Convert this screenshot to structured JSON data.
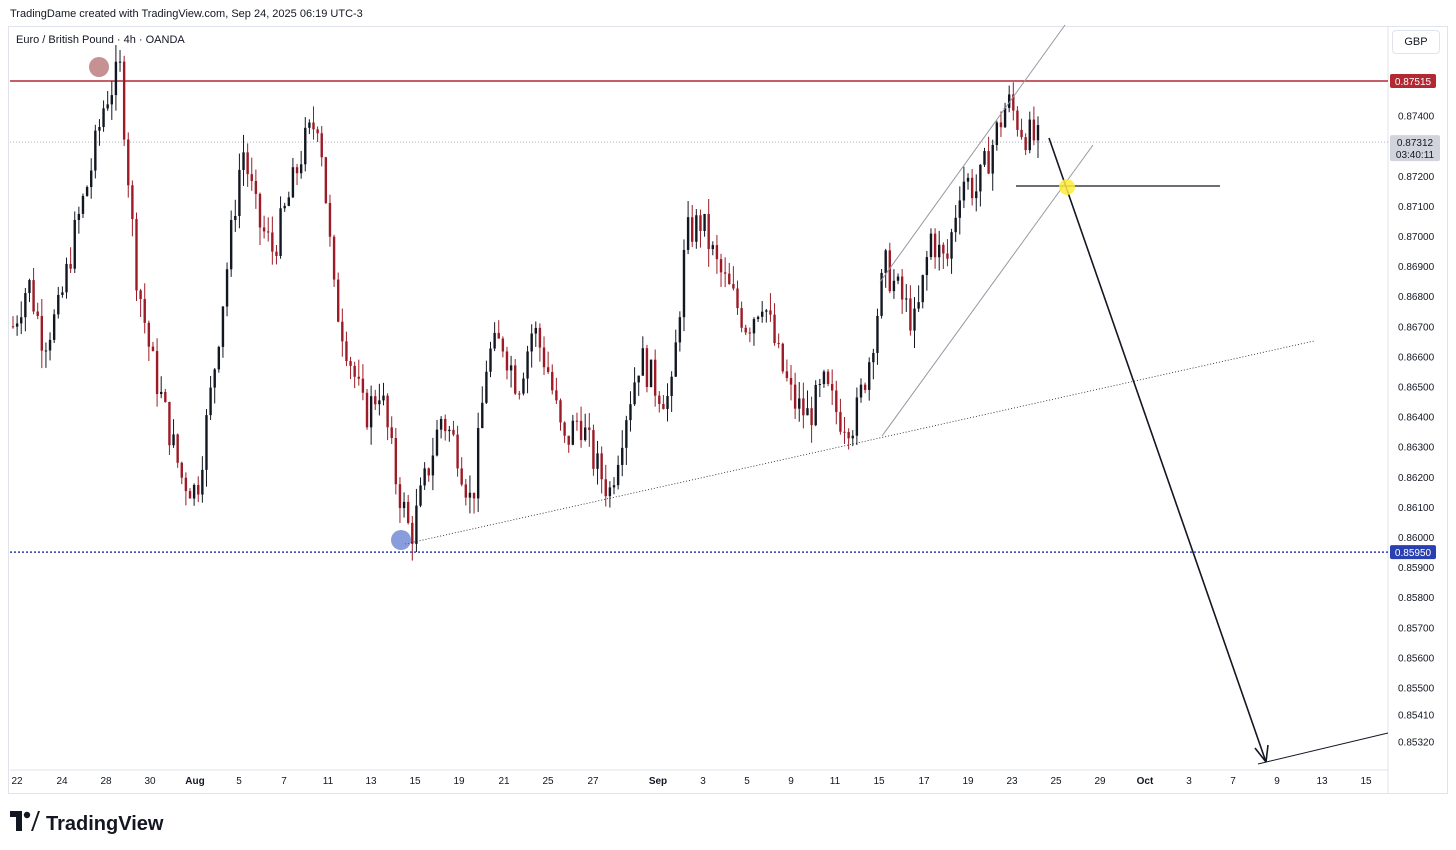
{
  "header": {
    "attribution": "TradingDame created with TradingView.com, Sep 24, 2025 06:19 UTC-3",
    "symbol": "Euro / British Pound · 4h · OANDA",
    "currency": "GBP"
  },
  "footer": {
    "logo_text": "TradingView"
  },
  "colors": {
    "up": "#131722",
    "down": "#9c1b26",
    "resistance": "#b22833",
    "support": "#2a3fb0",
    "current_tag": "#d1d4dc",
    "highlight_top": "#a0474b",
    "highlight_bottom": "#3b5bc4",
    "target_marker": "#ffeb3b"
  },
  "price_axis": {
    "labels": [
      "0.87400",
      "0.87200",
      "0.87100",
      "0.87000",
      "0.86900",
      "0.86800",
      "0.86700",
      "0.86600",
      "0.86500",
      "0.86400",
      "0.86300",
      "0.86200",
      "0.86100",
      "0.86000",
      "0.85900",
      "0.85800",
      "0.85700",
      "0.85600",
      "0.85500",
      "0.85410",
      "0.85320"
    ],
    "resistance_label": "0.87515",
    "support_label": "0.85950",
    "current_price": "0.87312",
    "countdown": "03:40:11"
  },
  "time_axis": {
    "labels": [
      "22",
      "24",
      "28",
      "30",
      "Aug",
      "5",
      "7",
      "11",
      "13",
      "15",
      "19",
      "21",
      "25",
      "27",
      "Sep",
      "3",
      "5",
      "9",
      "11",
      "15",
      "17",
      "19",
      "23",
      "25",
      "29",
      "Oct",
      "3",
      "7",
      "9",
      "13",
      "15"
    ]
  },
  "chart_data": {
    "type": "candlestick",
    "title": "Euro / British Pound · 4h · OANDA",
    "ylim": [
      0.853,
      0.876
    ],
    "resistance": 0.87515,
    "support": 0.8595,
    "last_price": 0.87312,
    "path_closes": [
      0.867,
      0.8685,
      0.8665,
      0.8675,
      0.87,
      0.872,
      0.8745,
      0.8755,
      0.869,
      0.866,
      0.864,
      0.862,
      0.8615,
      0.865,
      0.869,
      0.873,
      0.8705,
      0.8695,
      0.8712,
      0.873,
      0.874,
      0.868,
      0.866,
      0.864,
      0.865,
      0.862,
      0.86,
      0.862,
      0.864,
      0.863,
      0.861,
      0.866,
      0.8665,
      0.865,
      0.867,
      0.8655,
      0.863,
      0.864,
      0.8625,
      0.8615,
      0.864,
      0.866,
      0.865,
      0.8645,
      0.87,
      0.8705,
      0.869,
      0.868,
      0.867,
      0.868,
      0.866,
      0.8645,
      0.864,
      0.865,
      0.864,
      0.8638,
      0.866,
      0.869,
      0.868,
      0.867,
      0.87,
      0.869,
      0.872,
      0.8715,
      0.873,
      0.8745,
      0.8735,
      0.8731
    ]
  }
}
